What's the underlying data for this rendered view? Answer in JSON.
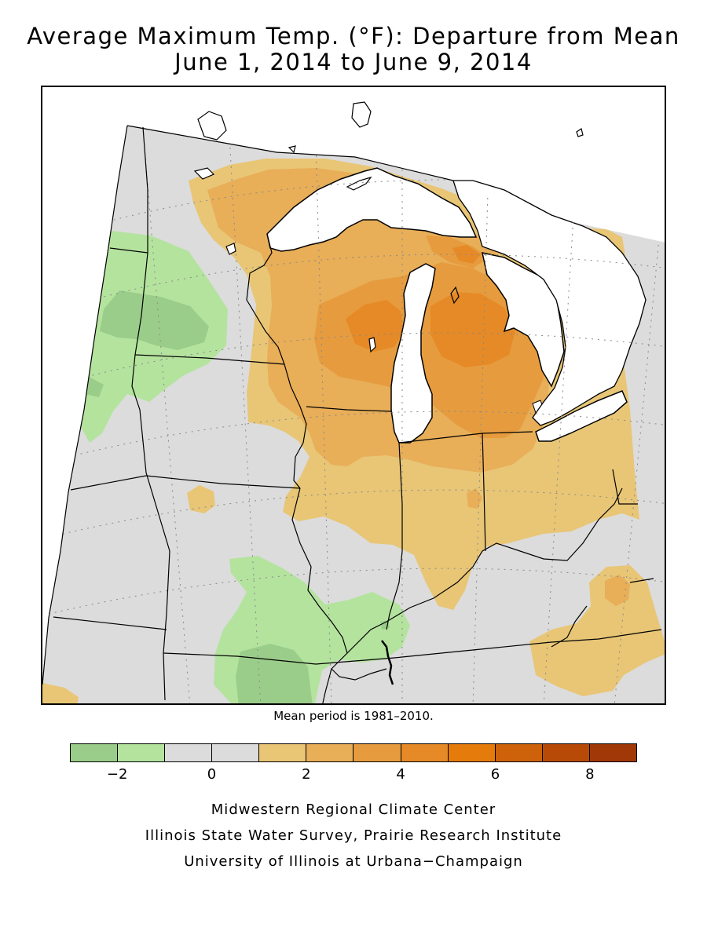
{
  "title_line1": "Average Maximum Temp. (°F): Departure from Mean",
  "title_line2": "June 1, 2014 to June 9, 2014",
  "map_note": "Mean period is 1981–2010.",
  "legend": {
    "colors": [
      "#9bcd8a",
      "#b4e39e",
      "#dcdcdc",
      "#dcdcdc",
      "#e8c676",
      "#e8ae58",
      "#e69c3e",
      "#e58a26",
      "#e57b0a",
      "#cd620a",
      "#b84a08",
      "#a13808"
    ],
    "bins": [
      -3,
      -2,
      -1,
      0,
      1,
      2,
      3,
      4,
      5,
      6,
      7,
      8,
      9
    ],
    "labels": [
      {
        "text": "−2",
        "value": -2
      },
      {
        "text": "0",
        "value": 0
      },
      {
        "text": "2",
        "value": 2
      },
      {
        "text": "4",
        "value": 4
      },
      {
        "text": "6",
        "value": 6
      },
      {
        "text": "8",
        "value": 8
      }
    ]
  },
  "credits": {
    "line1": "Midwestern Regional Climate Center",
    "line2": "Illinois State Water Survey, Prairie Research Institute",
    "line3": "University of Illinois at Urbana−Champaign"
  }
}
